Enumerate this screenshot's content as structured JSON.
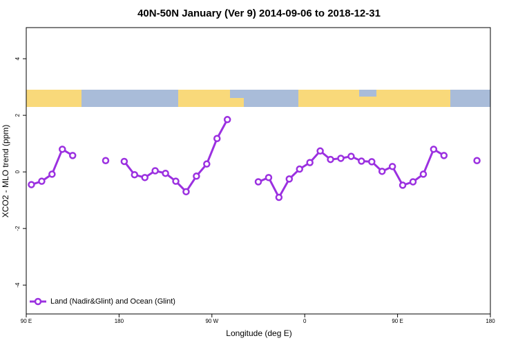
{
  "chart_data": {
    "type": "line",
    "title": "40N-50N January (Ver 9)   2014-09-06 to 2018-12-31",
    "x_label": "Longitude (deg E)",
    "y_label": "XCO2 - MLO trend (ppm)",
    "x": [
      95,
      105,
      115,
      125,
      135,
      150,
      167,
      175,
      185,
      195,
      205,
      215,
      225,
      235,
      245,
      255,
      265,
      275,
      285,
      300,
      315,
      325,
      335,
      345,
      355,
      365,
      375,
      385,
      395,
      405,
      415,
      425,
      435,
      445,
      455,
      465,
      475,
      485,
      495,
      510,
      527
    ],
    "series": [
      {
        "name": "Land (Nadir&Glint) and Ocean (Glint)",
        "color": "#9b30e0",
        "values": [
          -0.45,
          -0.33,
          -0.08,
          0.8,
          0.58,
          null,
          0.4,
          null,
          0.37,
          -0.1,
          -0.2,
          0.04,
          -0.05,
          -0.33,
          -0.7,
          -0.15,
          0.28,
          1.18,
          1.85,
          null,
          -0.35,
          -0.2,
          -0.9,
          -0.25,
          0.1,
          0.33,
          0.74,
          0.44,
          0.48,
          0.55,
          0.38,
          0.36,
          0.02,
          0.19,
          -0.47,
          -0.35,
          -0.08,
          0.8,
          0.58,
          null,
          0.4
        ]
      }
    ],
    "xlim": [
      90,
      540
    ],
    "xticks": [
      {
        "value": 90,
        "label": "90 E"
      },
      {
        "value": 180,
        "label": "180"
      },
      {
        "value": 270,
        "label": "90 W"
      },
      {
        "value": 360,
        "label": "0"
      },
      {
        "value": 450,
        "label": "90 E"
      },
      {
        "value": 540,
        "label": "180"
      }
    ],
    "ylim": [
      -5.02,
      5.1
    ],
    "yticks": [
      -4,
      -2,
      0,
      2,
      4
    ],
    "legend": "lower left"
  }
}
